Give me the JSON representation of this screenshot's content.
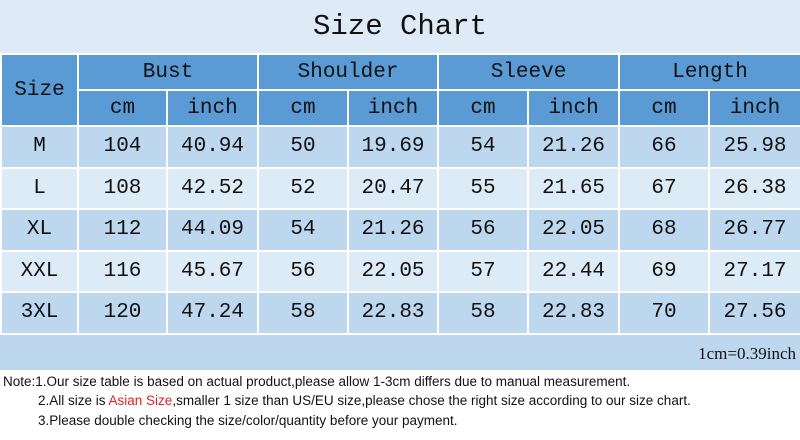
{
  "title": "Size Chart",
  "headers": {
    "size": "Size",
    "groups": [
      "Bust",
      "Shoulder",
      "Sleeve",
      "Length"
    ],
    "units": [
      "cm",
      "inch",
      "cm",
      "inch",
      "cm",
      "inch",
      "cm",
      "inch"
    ]
  },
  "rows": [
    [
      "M",
      "104",
      "40.94",
      "50",
      "19.69",
      "54",
      "21.26",
      "66",
      "25.98"
    ],
    [
      "L",
      "108",
      "42.52",
      "52",
      "20.47",
      "55",
      "21.65",
      "67",
      "26.38"
    ],
    [
      "XL",
      "112",
      "44.09",
      "54",
      "21.26",
      "56",
      "22.05",
      "68",
      "26.77"
    ],
    [
      "XXL",
      "116",
      "45.67",
      "56",
      "22.05",
      "57",
      "22.44",
      "69",
      "27.17"
    ],
    [
      "3XL",
      "120",
      "47.24",
      "58",
      "22.83",
      "58",
      "22.83",
      "70",
      "27.56"
    ]
  ],
  "conversion": "1cm=0.39inch",
  "notes": {
    "n1": "Note:1.Our size table is based on actual product,please allow 1-3cm differs due to manual measurement.",
    "n2_pre": "2.All size is ",
    "n2_red": "Asian Size",
    "n2_post": ",smaller 1 size than US/EU size,please chose the right size according to our size chart.",
    "n3": "3.Please double checking the size/color/quantity before your payment."
  },
  "colors": {
    "header": "#5b9bd5",
    "row_dark": "#bdd7ee",
    "row_light": "#ddebf7",
    "highlight": "#e02020"
  }
}
